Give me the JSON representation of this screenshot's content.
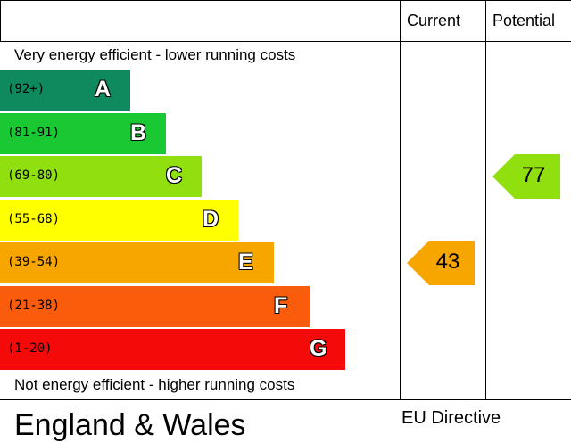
{
  "header": {
    "current_label": "Current",
    "potential_label": "Potential"
  },
  "captions": {
    "top": "Very energy efficient - lower running costs",
    "bottom": "Not energy efficient - higher running costs"
  },
  "footer": {
    "region": "England & Wales",
    "directive": "EU Directive"
  },
  "chart_data": {
    "type": "bar",
    "categories": [
      "A",
      "B",
      "C",
      "D",
      "E",
      "F",
      "G"
    ],
    "ranges": [
      "(92+)",
      "(81-91)",
      "(69-80)",
      "(55-68)",
      "(39-54)",
      "(21-38)",
      "(1-20)"
    ],
    "colors": [
      "#0f8a5f",
      "#19c832",
      "#8fe00e",
      "#ffff00",
      "#f7a600",
      "#f95c0a",
      "#f50a0a"
    ],
    "current": {
      "value": 43,
      "band": "E",
      "color": "#f7a600"
    },
    "potential": {
      "value": 77,
      "band": "C",
      "color": "#8fe00e"
    }
  }
}
